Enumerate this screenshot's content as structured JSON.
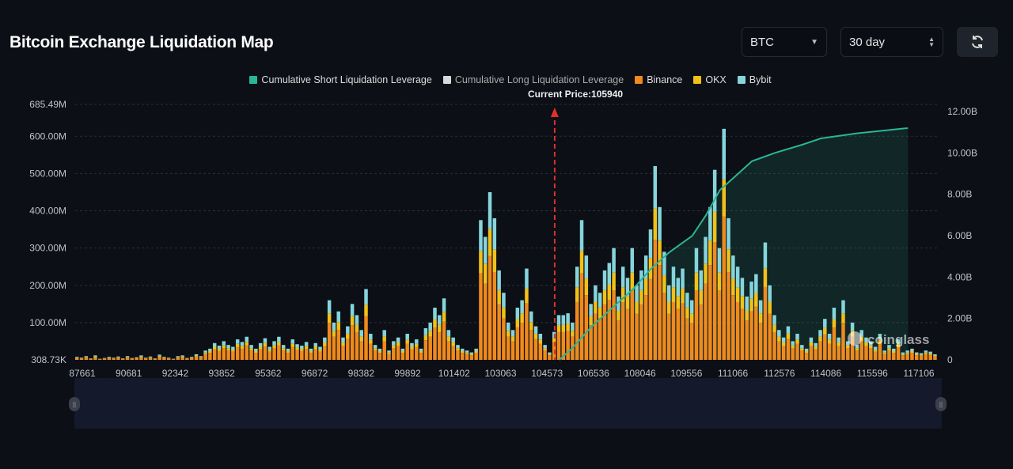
{
  "header": {
    "title": "Bitcoin Exchange Liquidation Map",
    "coin_select": "BTC",
    "period_select": "30 day",
    "refresh_icon": "refresh-icon"
  },
  "current_price_label": "Current Price:105940",
  "watermark": "coinglass",
  "colors": {
    "short": "#2bb596",
    "long": "#d9d9d9",
    "binance": "#f08a1c",
    "okx": "#f2c117",
    "bybit": "#86d5dc"
  },
  "chart_data": {
    "type": "bar",
    "title": "Bitcoin Exchange Liquidation Map",
    "legend": [
      "Cumulative Short Liquidation Leverage",
      "Cumulative Long Liquidation Leverage",
      "Binance",
      "OKX",
      "Bybit"
    ],
    "legend_position": "top",
    "x_tick_labels": [
      "87661",
      "90681",
      "92342",
      "93852",
      "95362",
      "96872",
      "98382",
      "99892",
      "101402",
      "103063",
      "104573",
      "106536",
      "108046",
      "109556",
      "111066",
      "112576",
      "114086",
      "115596",
      "117106"
    ],
    "y_left_ticks": [
      "308.73K",
      "100.00M",
      "200.00M",
      "300.00M",
      "400.00M",
      "500.00M",
      "600.00M",
      "685.49M"
    ],
    "y_left_values": [
      0,
      100,
      200,
      300,
      400,
      500,
      600,
      685.49
    ],
    "y_left_range_millions": [
      0,
      685.49
    ],
    "y_right_ticks": [
      "0",
      "2.00B",
      "4.00B",
      "6.00B",
      "8.00B",
      "10.00B",
      "12.00B"
    ],
    "y_right_values": [
      0,
      2,
      4,
      6,
      8,
      10,
      12
    ],
    "current_price_bar_index": 105,
    "exchange_share": {
      "binance": 0.62,
      "okx": 0.16,
      "bybit": 0.22
    },
    "bar_totals_millions": [
      8,
      6,
      10,
      4,
      12,
      3,
      5,
      8,
      6,
      9,
      4,
      10,
      5,
      7,
      12,
      6,
      9,
      4,
      14,
      8,
      6,
      3,
      10,
      12,
      5,
      8,
      15,
      10,
      25,
      30,
      45,
      38,
      50,
      40,
      35,
      55,
      48,
      62,
      40,
      30,
      45,
      58,
      35,
      50,
      62,
      40,
      30,
      55,
      42,
      38,
      48,
      30,
      45,
      35,
      60,
      160,
      100,
      130,
      60,
      90,
      150,
      120,
      80,
      190,
      70,
      40,
      30,
      80,
      25,
      50,
      60,
      30,
      70,
      45,
      55,
      30,
      85,
      100,
      140,
      120,
      165,
      80,
      60,
      40,
      30,
      25,
      20,
      30,
      375,
      330,
      450,
      380,
      240,
      180,
      100,
      80,
      140,
      160,
      245,
      130,
      90,
      70,
      40,
      20,
      75,
      120,
      120,
      125,
      100,
      250,
      375,
      280,
      150,
      200,
      180,
      240,
      260,
      300,
      170,
      250,
      220,
      300,
      200,
      240,
      280,
      350,
      520,
      410,
      290,
      200,
      250,
      220,
      245,
      180,
      160,
      300,
      240,
      330,
      410,
      510,
      300,
      620,
      380,
      280,
      250,
      220,
      170,
      210,
      230,
      160,
      315,
      200,
      120,
      80,
      60,
      90,
      50,
      70,
      40,
      30,
      60,
      45,
      80,
      110,
      70,
      140,
      60,
      160,
      50,
      100,
      40,
      80,
      60,
      50,
      35,
      70,
      25,
      40,
      30,
      55,
      20,
      25,
      30,
      20,
      18,
      25,
      22,
      15
    ],
    "cumulative_short_billions": [
      [
        105,
        0
      ],
      [
        108,
        0.6
      ],
      [
        112,
        1.6
      ],
      [
        117,
        2.6
      ],
      [
        121,
        3.4
      ],
      [
        125,
        4.4
      ],
      [
        129,
        5.2
      ],
      [
        134,
        6.0
      ],
      [
        137,
        7.0
      ],
      [
        140,
        8.2
      ],
      [
        144,
        9.0
      ],
      [
        147,
        9.6
      ],
      [
        152,
        10.0
      ],
      [
        158,
        10.4
      ],
      [
        162,
        10.7
      ],
      [
        170,
        10.95
      ],
      [
        181,
        11.2
      ]
    ]
  }
}
